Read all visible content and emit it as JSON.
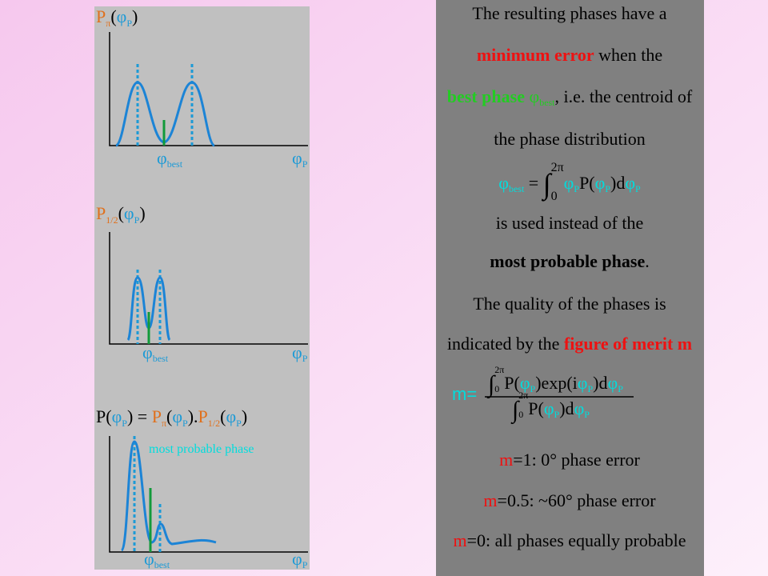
{
  "left_panels": [
    {
      "label": [
        "P",
        "π",
        "(",
        "φ",
        "P",
        ")"
      ],
      "best_label": [
        "φ",
        "best"
      ],
      "axis_label": [
        "φ",
        "P"
      ]
    },
    {
      "label": [
        "P",
        "1/2",
        "(",
        "φ",
        "P",
        ")"
      ],
      "best_label": [
        "φ",
        "best"
      ],
      "axis_label": [
        "φ",
        "P"
      ]
    },
    {
      "label": [
        "P(",
        "φ",
        "P",
        ") = ",
        "P",
        "π",
        "(",
        "φ",
        "P",
        ").",
        "P",
        "1/2",
        "(",
        "φ",
        "P",
        ")"
      ],
      "annotation": "most probable phase",
      "best_label": [
        "φ",
        "best"
      ],
      "axis_label": [
        "φ",
        "P"
      ]
    }
  ],
  "right_panel": {
    "line1": "The resulting phases have a",
    "line2": [
      "minimum error",
      " when the"
    ],
    "line3": [
      "best phase ",
      "φ",
      "best",
      ", i.e. the centroid of"
    ],
    "line4": "the phase distribution",
    "formula1": [
      "φ",
      "best",
      " = ",
      "∫",
      "0",
      "2π",
      "φ",
      "P",
      "P(",
      "φ",
      "P",
      ")d",
      "φ",
      "P"
    ],
    "line5": "is used instead of the",
    "line6": [
      "most probable phase",
      "."
    ],
    "line7": "The quality of the phases is",
    "line8": [
      "indicated by the ",
      "figure of merit m"
    ],
    "formula2": {
      "lhs": "m=",
      "numerator": [
        "∫",
        "0",
        "2π",
        "P(",
        "φ",
        "P",
        ")exp(i",
        "φ",
        "P",
        ")d",
        "φ",
        "P"
      ],
      "denominator": [
        "∫",
        "0",
        "2π",
        "P(",
        "φ",
        "P",
        ")d",
        "φ",
        "P"
      ]
    },
    "line9": [
      "m",
      "=1: 0° phase error"
    ],
    "line10": [
      "m",
      "=0.5: ~60° phase error"
    ],
    "line11": [
      "m",
      "=0: all phases equally probable"
    ]
  }
}
